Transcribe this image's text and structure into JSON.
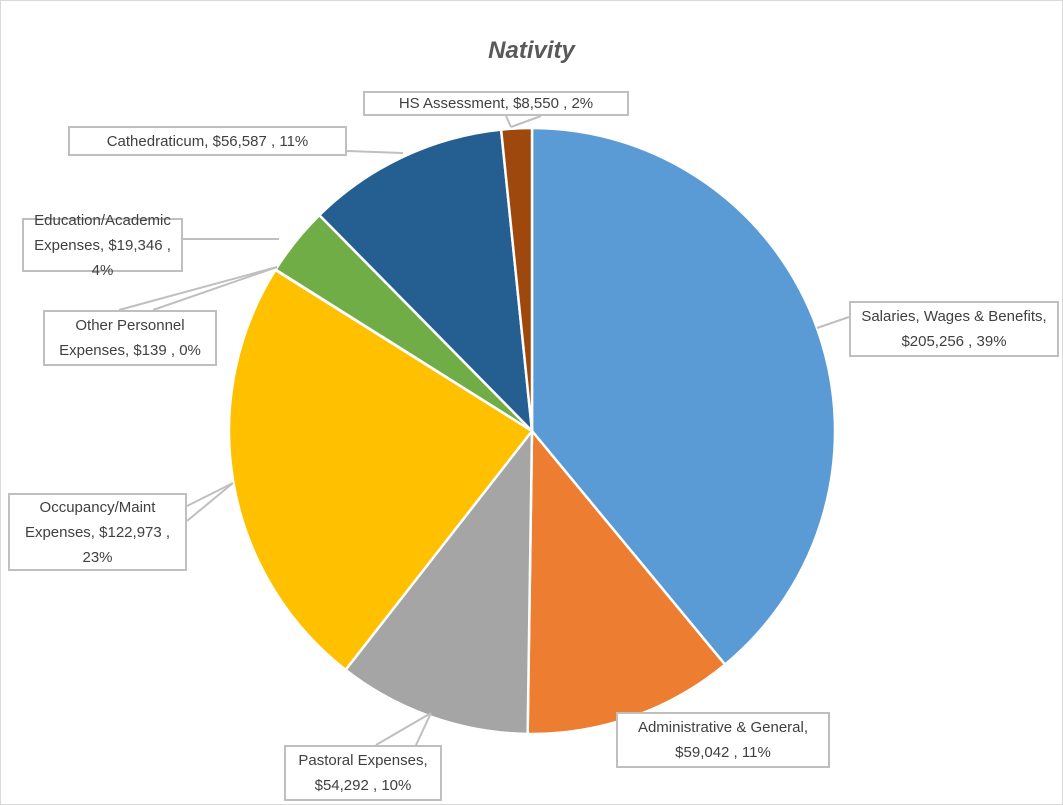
{
  "chart_data": {
    "type": "pie",
    "title": "Nativity",
    "start_angle": "12 o'clock, clockwise",
    "slices": [
      {
        "name": "Salaries, Wages & Benefits",
        "value": 205256,
        "value_label": "$205,256",
        "percent": "39%",
        "color": "#5b9bd5"
      },
      {
        "name": "Administrative & General",
        "value": 59042,
        "value_label": "$59,042",
        "percent": "11%",
        "color": "#ed7d31"
      },
      {
        "name": "Pastoral Expenses",
        "value": 54292,
        "value_label": "$54,292",
        "percent": "10%",
        "color": "#a5a5a5"
      },
      {
        "name": "Occupancy/Maint Expenses",
        "value": 122973,
        "value_label": "$122,973",
        "percent": "23%",
        "color": "#ffc000"
      },
      {
        "name": "Other Personnel Expenses",
        "value": 139,
        "value_label": "$139",
        "percent": "0%",
        "color": "#4472c4"
      },
      {
        "name": "Education/Academic Expenses",
        "value": 19346,
        "value_label": "$19,346",
        "percent": "4%",
        "color": "#70ad47"
      },
      {
        "name": "Cathedraticum",
        "value": 56587,
        "value_label": "$56,587",
        "percent": "11%",
        "color": "#255e91"
      },
      {
        "name": "HS Assessment",
        "value": 8550,
        "value_label": "$8,550",
        "percent": "2%",
        "color": "#9e480e"
      }
    ]
  }
}
